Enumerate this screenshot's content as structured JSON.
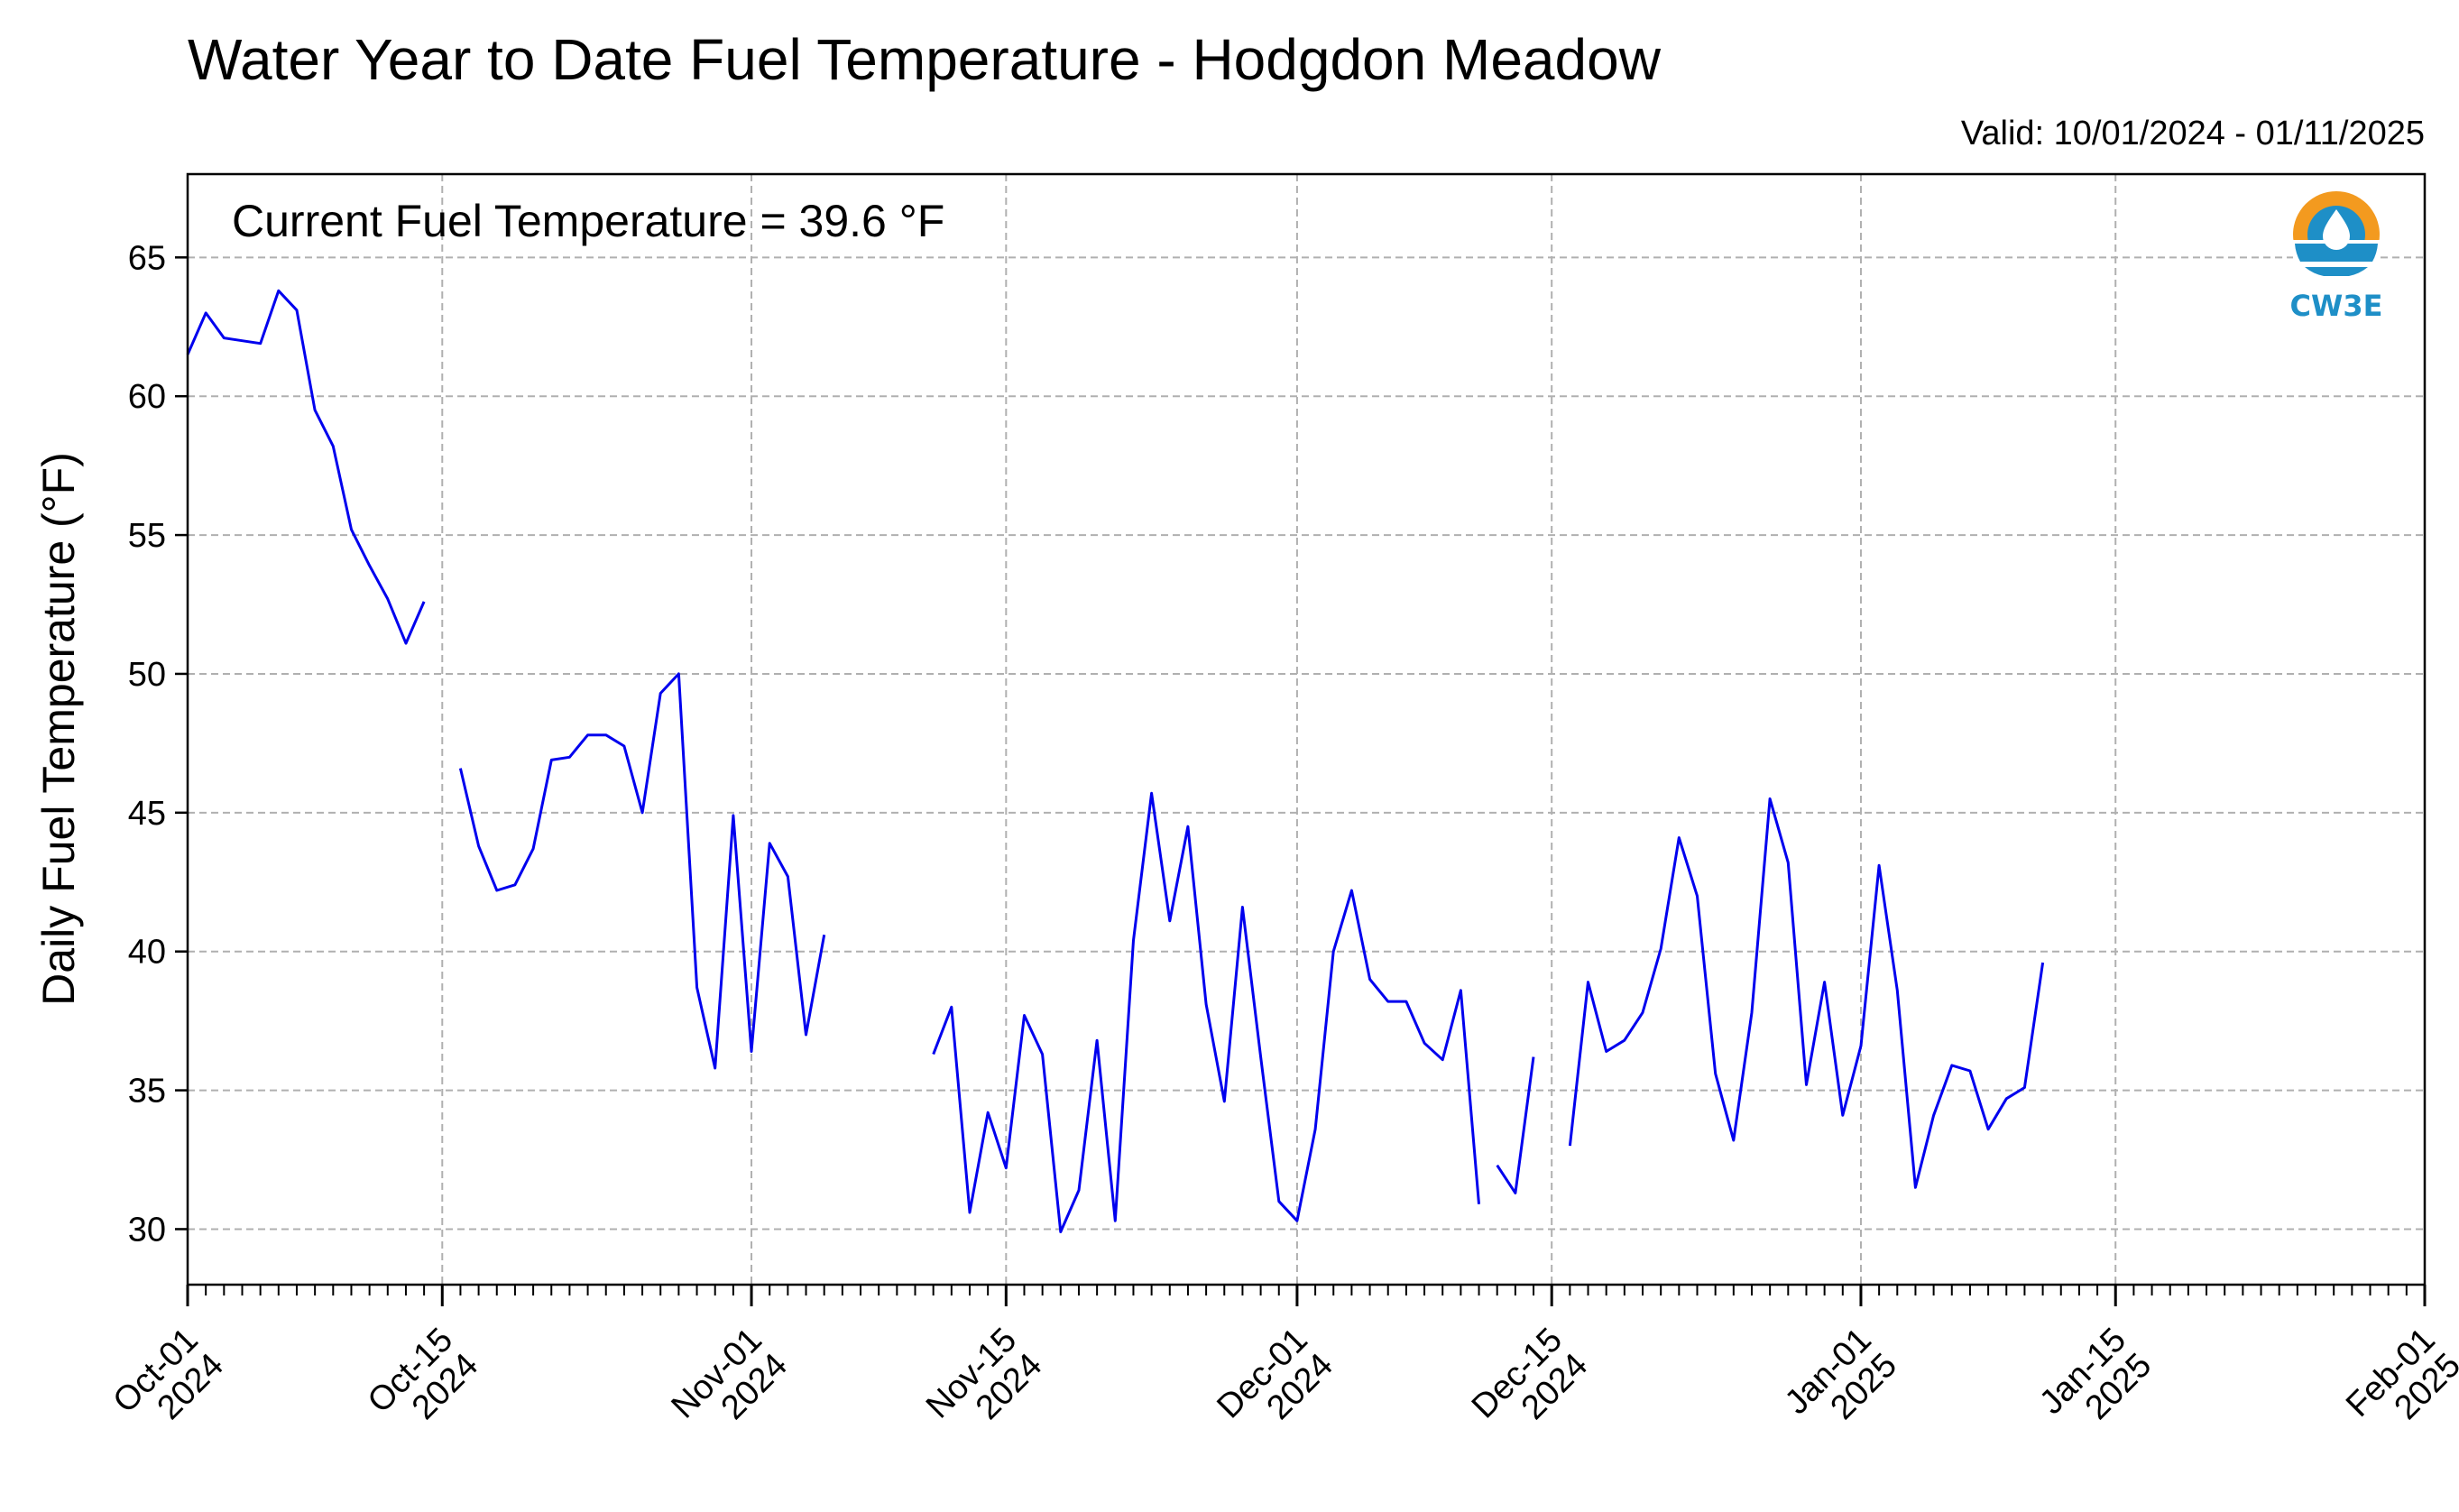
{
  "chart_data": {
    "type": "line",
    "title": "Water Year to Date Fuel Temperature - Hodgdon Meadow",
    "valid_label": "Valid: 10/01/2024 - 01/11/2025",
    "ylabel": "Daily Fuel Temperature (°F)",
    "xlabel": "",
    "annotation": "Current Fuel Temperature = 39.6 °F",
    "logo_text": "CW3E",
    "xlim": [
      "2024-10-01",
      "2025-02-01"
    ],
    "ylim": [
      28,
      68
    ],
    "grid": true,
    "y_ticks": [
      30,
      35,
      40,
      45,
      50,
      55,
      60,
      65
    ],
    "x_ticks": [
      {
        "date": "2024-10-01",
        "line1": "Oct-01",
        "line2": "2024"
      },
      {
        "date": "2024-10-15",
        "line1": "Oct-15",
        "line2": "2024"
      },
      {
        "date": "2024-11-01",
        "line1": "Nov-01",
        "line2": "2024"
      },
      {
        "date": "2024-11-15",
        "line1": "Nov-15",
        "line2": "2024"
      },
      {
        "date": "2024-12-01",
        "line1": "Dec-01",
        "line2": "2024"
      },
      {
        "date": "2024-12-15",
        "line1": "Dec-15",
        "line2": "2024"
      },
      {
        "date": "2025-01-01",
        "line1": "Jan-01",
        "line2": "2025"
      },
      {
        "date": "2025-01-15",
        "line1": "Jan-15",
        "line2": "2025"
      },
      {
        "date": "2025-02-01",
        "line1": "Feb-01",
        "line2": "2025"
      }
    ],
    "line_color": "#0000ee",
    "series": [
      {
        "segments": [
          {
            "start": "2024-10-01",
            "values": [
              61.5,
              63.0,
              62.1,
              62.0,
              61.9,
              63.8,
              63.1,
              59.5,
              58.2,
              55.2,
              53.9,
              52.7,
              51.1,
              52.6
            ]
          },
          {
            "start": "2024-10-16",
            "values": [
              46.6,
              43.8,
              42.2,
              42.4,
              43.7,
              46.9,
              47.0,
              47.8,
              47.8,
              47.4,
              45.0,
              49.3,
              50.0,
              38.7,
              35.8,
              44.9,
              36.4,
              43.9,
              42.7,
              37.0,
              40.6
            ]
          },
          {
            "start": "2024-11-11",
            "values": [
              36.3,
              38.0,
              30.6,
              34.2,
              32.2,
              37.7,
              36.3,
              29.9,
              31.4,
              36.8,
              30.3,
              40.4,
              45.7,
              41.1,
              44.5,
              38.1,
              34.6,
              41.6,
              36.2,
              31.0,
              30.3,
              33.6,
              40.0,
              42.2,
              39.0,
              38.2,
              38.2,
              36.7,
              36.1,
              38.6,
              30.9
            ]
          },
          {
            "start": "2024-12-12",
            "values": [
              32.3,
              31.3,
              36.2
            ]
          },
          {
            "start": "2024-12-16",
            "values": [
              33.0,
              38.9,
              36.4,
              36.8,
              37.8,
              40.1,
              44.1,
              42.0,
              35.6,
              33.2,
              37.8,
              45.5,
              43.2,
              35.2,
              38.9,
              34.1,
              36.6,
              43.1,
              38.6,
              31.5,
              34.1,
              35.9,
              35.7,
              33.6,
              34.7,
              35.1,
              39.6
            ]
          }
        ]
      }
    ]
  }
}
